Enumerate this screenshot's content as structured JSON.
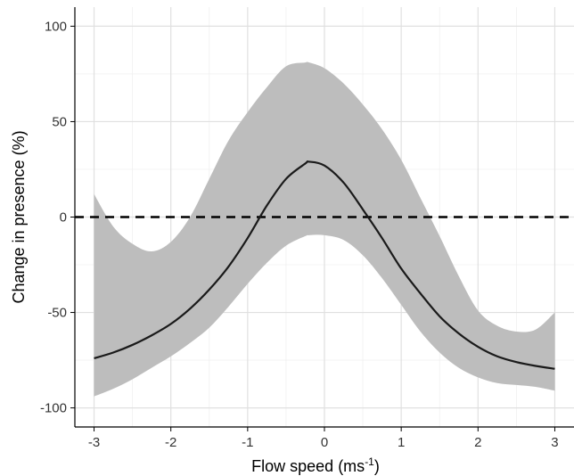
{
  "chart_data": {
    "type": "line",
    "xlabel": "Flow speed (ms",
    "xlabel_superscript": "-1",
    "xlabel_suffix": ")",
    "ylabel": "Change in presence (%)",
    "xlim": [
      -3.25,
      3.25
    ],
    "ylim": [
      -110,
      110
    ],
    "x_ticks": [
      -3,
      -2,
      -1,
      0,
      1,
      2,
      3
    ],
    "x_tick_labels": [
      "-3",
      "-2",
      "-1",
      "0",
      "1",
      "2",
      "3"
    ],
    "y_ticks": [
      -100,
      -50,
      0,
      50,
      100
    ],
    "y_tick_labels": [
      "-100",
      "-50",
      "0",
      "50",
      "100"
    ],
    "grid": true,
    "reference_line": {
      "y": 0,
      "style": "dashed"
    },
    "series": [
      {
        "values_x": [
          -3.0,
          -2.75,
          -2.5,
          -2.25,
          -2.0,
          -1.75,
          -1.5,
          -1.25,
          -1.0,
          -0.75,
          -0.5,
          -0.25,
          -0.2,
          0.0,
          0.25,
          0.5,
          0.75,
          1.0,
          1.25,
          1.5,
          1.75,
          2.0,
          2.25,
          2.5,
          2.75,
          3.0
        ],
        "values_y": [
          -74,
          -71,
          -67,
          -62,
          -56,
          -48,
          -38,
          -26,
          -11,
          6,
          20,
          28,
          29,
          27,
          18,
          4,
          -11,
          -27,
          -40,
          -52,
          -61,
          -68,
          -73,
          -76,
          -78,
          -79.5
        ],
        "ci_lower": [
          -94,
          -90,
          -85,
          -79,
          -73,
          -66,
          -58,
          -47,
          -35,
          -24,
          -15,
          -10,
          -9.5,
          -9.5,
          -12,
          -20,
          -32,
          -46,
          -60,
          -71,
          -79,
          -84,
          -87,
          -88,
          -89,
          -91
        ],
        "ci_upper": [
          12,
          -5,
          -14,
          -18,
          -13,
          0,
          20,
          40,
          55,
          68,
          79,
          81,
          81,
          78,
          70,
          59,
          46,
          30,
          10,
          -10,
          -31,
          -49,
          -57,
          -60,
          -59,
          -50
        ]
      }
    ],
    "colors": {
      "line": "#1a1a1a",
      "ribbon": "#bdbdbd",
      "grid_major": "#e0e0e0",
      "grid_minor": "#f0f0f0",
      "axis": "#000000"
    }
  }
}
